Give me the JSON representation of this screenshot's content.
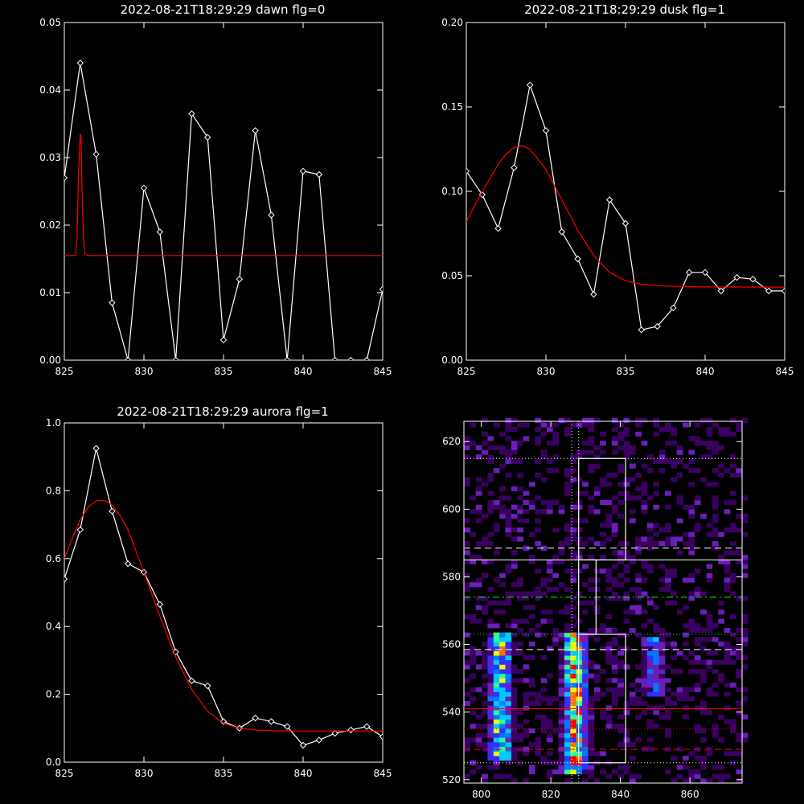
{
  "chart_data": [
    {
      "type": "line",
      "title": "2022-08-21T18:29:29 dawn flg=0",
      "xlim": [
        825,
        845
      ],
      "ylim": [
        0,
        0.05
      ],
      "xticks": [
        "825",
        "830",
        "835",
        "840",
        "845"
      ],
      "xtick_values": [
        825,
        830,
        835,
        840,
        845
      ],
      "yticks": [
        "0.00",
        "0.01",
        "0.02",
        "0.03",
        "0.04",
        "0.05"
      ],
      "ytick_values": [
        0,
        0.01,
        0.02,
        0.03,
        0.04,
        0.05
      ],
      "series": [
        {
          "style": "line-diamond",
          "color": "#ffffff",
          "x": [
            825,
            826,
            827,
            828,
            829,
            830,
            831,
            832,
            833,
            834,
            835,
            836,
            837,
            838,
            839,
            840,
            841,
            842,
            843,
            844,
            845
          ],
          "y": [
            0.027,
            0.044,
            0.0305,
            0.0085,
            0.0,
            0.0255,
            0.019,
            0.0,
            0.0365,
            0.033,
            0.003,
            0.012,
            0.034,
            0.0215,
            0.0,
            0.028,
            0.0275,
            0.0,
            0.0,
            0.0,
            0.0105
          ]
        },
        {
          "style": "line",
          "color": "#ff0000",
          "x": [
            825,
            825.7,
            825.8,
            825.9,
            826.0,
            826.05,
            826.1,
            826.2,
            826.3,
            826.45,
            845
          ],
          "y": [
            0.0155,
            0.0155,
            0.018,
            0.028,
            0.0335,
            0.033,
            0.026,
            0.018,
            0.0157,
            0.0155,
            0.0155
          ]
        }
      ]
    },
    {
      "type": "line",
      "title": "2022-08-21T18:29:29 dusk flg=1",
      "xlim": [
        825,
        845
      ],
      "ylim": [
        0,
        0.2
      ],
      "xticks": [
        "825",
        "830",
        "835",
        "840",
        "845"
      ],
      "xtick_values": [
        825,
        830,
        835,
        840,
        845
      ],
      "yticks": [
        "0.00",
        "0.05",
        "0.10",
        "0.15",
        "0.20"
      ],
      "ytick_values": [
        0,
        0.05,
        0.1,
        0.15,
        0.2
      ],
      "series": [
        {
          "style": "line-diamond",
          "color": "#ffffff",
          "x": [
            825,
            826,
            827,
            828,
            829,
            830,
            831,
            832,
            833,
            834,
            835,
            836,
            837,
            838,
            839,
            840,
            841,
            842,
            843,
            844,
            845
          ],
          "y": [
            0.112,
            0.098,
            0.078,
            0.114,
            0.163,
            0.136,
            0.076,
            0.06,
            0.039,
            0.095,
            0.081,
            0.018,
            0.02,
            0.031,
            0.052,
            0.052,
            0.041,
            0.049,
            0.048,
            0.041,
            0.041
          ]
        },
        {
          "style": "line",
          "color": "#ff0000",
          "x": [
            825,
            826,
            827,
            827.5,
            828,
            828.5,
            829,
            830,
            831,
            832,
            833,
            834,
            835,
            836,
            837,
            838,
            839,
            840,
            845
          ],
          "y": [
            0.082,
            0.1,
            0.116,
            0.122,
            0.126,
            0.127,
            0.125,
            0.113,
            0.095,
            0.077,
            0.062,
            0.052,
            0.047,
            0.045,
            0.0442,
            0.0437,
            0.0435,
            0.0434,
            0.0433
          ]
        }
      ]
    },
    {
      "type": "line",
      "title": "2022-08-21T18:29:29 aurora flg=1",
      "xlim": [
        825,
        845
      ],
      "ylim": [
        0,
        1.0
      ],
      "xticks": [
        "825",
        "830",
        "835",
        "840",
        "845"
      ],
      "xtick_values": [
        825,
        830,
        835,
        840,
        845
      ],
      "yticks": [
        "0.0",
        "0.2",
        "0.4",
        "0.6",
        "0.8",
        "1.0"
      ],
      "ytick_values": [
        0,
        0.2,
        0.4,
        0.6,
        0.8,
        1.0
      ],
      "series": [
        {
          "style": "line-diamond",
          "color": "#ffffff",
          "x": [
            825,
            826,
            827,
            828,
            829,
            830,
            831,
            832,
            833,
            834,
            835,
            836,
            837,
            838,
            839,
            840,
            841,
            842,
            843,
            844,
            845
          ],
          "y": [
            0.54,
            0.685,
            0.925,
            0.74,
            0.585,
            0.56,
            0.465,
            0.325,
            0.24,
            0.225,
            0.12,
            0.1,
            0.13,
            0.12,
            0.105,
            0.05,
            0.065,
            0.085,
            0.095,
            0.105,
            0.075
          ]
        },
        {
          "style": "line",
          "color": "#ff0000",
          "x": [
            825,
            825.5,
            826,
            826.5,
            827,
            827.5,
            828,
            828.5,
            829,
            830,
            831,
            832,
            833,
            834,
            835,
            836,
            837,
            838,
            840,
            845
          ],
          "y": [
            0.6,
            0.66,
            0.715,
            0.752,
            0.77,
            0.772,
            0.758,
            0.728,
            0.685,
            0.56,
            0.43,
            0.31,
            0.215,
            0.15,
            0.115,
            0.1,
            0.095,
            0.093,
            0.092,
            0.092
          ]
        }
      ]
    },
    {
      "type": "heatmap",
      "xlim": [
        795,
        875
      ],
      "ylim": [
        519,
        626
      ],
      "xticks": [
        "800",
        "820",
        "840",
        "860"
      ],
      "xtick_values": [
        800,
        820,
        840,
        860
      ],
      "yticks": [
        "520",
        "540",
        "560",
        "580",
        "600",
        "620"
      ],
      "ytick_values": [
        520,
        540,
        560,
        580,
        600,
        620
      ],
      "colormap": [
        "#000000",
        "#3a0060",
        "#6a1fb8",
        "#3030ff",
        "#0078ff",
        "#00c8ff",
        "#30ff90",
        "#e6ff00",
        "#ff7000",
        "#ff0000"
      ],
      "bands": [
        {
          "x": 805.5,
          "half_width": 3.5,
          "y_from": 526,
          "y_to": 563,
          "peak": 0.75
        },
        {
          "x": 827,
          "half_width": 3.5,
          "y_from": 522,
          "y_to": 563,
          "peak": 0.9
        },
        {
          "x": 849.5,
          "half_width": 3.5,
          "y_from": 545,
          "y_to": 562,
          "peak": 0.45
        }
      ],
      "overlays": [
        {
          "kind": "vline",
          "x": 826,
          "style": "dotted",
          "color": "#ffffff"
        },
        {
          "kind": "vline",
          "x": 828,
          "style": "dotted",
          "color": "#ffffff"
        },
        {
          "kind": "hline",
          "y": 615,
          "style": "dotted",
          "color": "#ffffff"
        },
        {
          "kind": "hline",
          "y": 588.5,
          "style": "dashed",
          "color": "#ffffff"
        },
        {
          "kind": "hline",
          "y": 585,
          "style": "solid",
          "color": "#ffffff"
        },
        {
          "kind": "hline",
          "y": 574,
          "style": "dashdot",
          "color": "#00ff00"
        },
        {
          "kind": "hline",
          "y": 563,
          "style": "dotted",
          "color": "#00ff00"
        },
        {
          "kind": "hline",
          "y": 558.5,
          "style": "dashed",
          "color": "#ffffff"
        },
        {
          "kind": "hline",
          "y": 541,
          "style": "solid",
          "color": "#ff0000"
        },
        {
          "kind": "hline",
          "y": 535,
          "style": "dotted",
          "color": "#ff0000"
        },
        {
          "kind": "hline",
          "y": 529,
          "style": "dashed",
          "color": "#ff0000"
        },
        {
          "kind": "hline",
          "y": 525,
          "style": "dotted",
          "color": "#ffffff"
        },
        {
          "kind": "box",
          "x0": 828,
          "x1": 841.5,
          "y0": 585,
          "y1": 615,
          "color": "#ffffff"
        },
        {
          "kind": "box",
          "x0": 828,
          "x1": 833,
          "y0": 563,
          "y1": 585,
          "color": "#ffffff"
        },
        {
          "kind": "box",
          "x0": 828,
          "x1": 841.5,
          "y0": 525,
          "y1": 563,
          "color": "#ffffff"
        }
      ]
    }
  ]
}
